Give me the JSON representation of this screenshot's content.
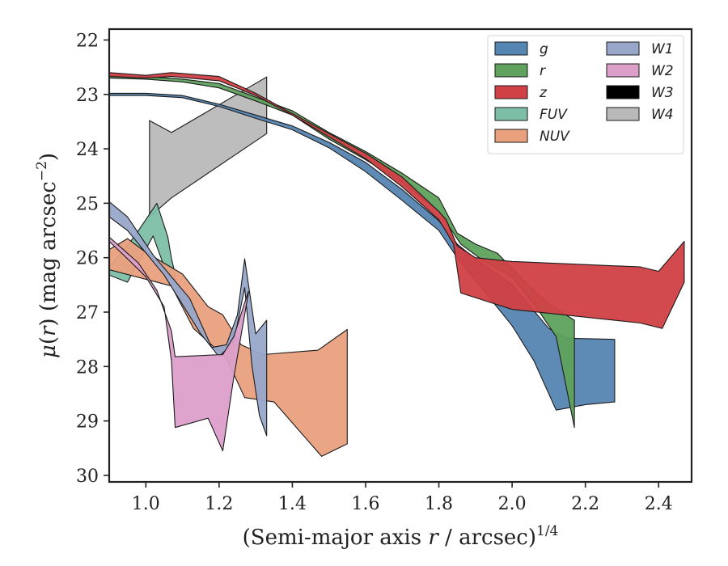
{
  "chart_data": {
    "type": "area",
    "xlabel": "(Semi-major axis r / arcsec)^{1/4}",
    "xlabel_parts": {
      "prefix": "(Semi-major axis ",
      "var": "r",
      "suffix": " / arcsec)",
      "exponent": "1/4"
    },
    "ylabel": "μ(r) (mag arcsec^{-2})",
    "ylabel_parts": {
      "mu": "μ",
      "open": "(",
      "var": "r",
      "close": ")",
      "rest": " (mag arcsec",
      "exponent": "−2",
      "end": ")"
    },
    "xlim": [
      0.9,
      2.49
    ],
    "ylim": [
      30.12,
      21.8
    ],
    "y_inverted": true,
    "x_ticks": [
      "1.0",
      "1.2",
      "1.4",
      "1.6",
      "1.8",
      "2.0",
      "2.2",
      "2.4"
    ],
    "x_tick_values": [
      1.0,
      1.2,
      1.4,
      1.6,
      1.8,
      2.0,
      2.2,
      2.4
    ],
    "y_ticks": [
      "22",
      "23",
      "24",
      "25",
      "26",
      "27",
      "28",
      "29",
      "30"
    ],
    "y_tick_values": [
      22,
      23,
      24,
      25,
      26,
      27,
      28,
      29,
      30
    ],
    "legend": {
      "location": "top-right",
      "columns": 2,
      "entries": [
        "g",
        "r",
        "z",
        "FUV",
        "NUV",
        "W1",
        "W2",
        "W3",
        "W4"
      ]
    },
    "series": [
      {
        "name": "W4",
        "color": "#b9b9b9",
        "upper": [
          [
            1.01,
            23.48
          ],
          [
            1.07,
            23.7
          ],
          [
            1.33,
            22.68
          ]
        ],
        "lower": [
          [
            1.01,
            25.25
          ],
          [
            1.07,
            24.9
          ],
          [
            1.33,
            23.72
          ]
        ]
      },
      {
        "name": "g",
        "color": "#5585b1",
        "upper": [
          [
            0.9,
            22.98
          ],
          [
            1.0,
            22.98
          ],
          [
            1.1,
            23.02
          ],
          [
            1.2,
            23.18
          ],
          [
            1.3,
            23.38
          ],
          [
            1.4,
            23.58
          ],
          [
            1.5,
            23.88
          ],
          [
            1.6,
            24.25
          ],
          [
            1.7,
            24.75
          ],
          [
            1.8,
            25.32
          ],
          [
            1.85,
            25.75
          ],
          [
            1.9,
            26.02
          ],
          [
            2.0,
            26.5
          ],
          [
            2.1,
            27.3
          ],
          [
            2.15,
            27.48
          ],
          [
            2.28,
            27.5
          ]
        ],
        "lower": [
          [
            0.9,
            23.02
          ],
          [
            1.0,
            23.02
          ],
          [
            1.1,
            23.06
          ],
          [
            1.2,
            23.22
          ],
          [
            1.3,
            23.44
          ],
          [
            1.4,
            23.65
          ],
          [
            1.5,
            23.98
          ],
          [
            1.6,
            24.42
          ],
          [
            1.7,
            24.95
          ],
          [
            1.8,
            25.5
          ],
          [
            1.85,
            26.0
          ],
          [
            2.0,
            27.25
          ],
          [
            2.06,
            27.9
          ],
          [
            2.12,
            28.8
          ],
          [
            2.2,
            28.7
          ],
          [
            2.28,
            28.65
          ]
        ]
      },
      {
        "name": "r",
        "color": "#5fa25d",
        "upper": [
          [
            0.9,
            22.65
          ],
          [
            1.0,
            22.67
          ],
          [
            1.1,
            22.72
          ],
          [
            1.2,
            22.8
          ],
          [
            1.3,
            23.05
          ],
          [
            1.4,
            23.3
          ],
          [
            1.5,
            23.7
          ],
          [
            1.6,
            24.05
          ],
          [
            1.7,
            24.45
          ],
          [
            1.8,
            24.9
          ],
          [
            1.85,
            25.55
          ],
          [
            1.9,
            25.75
          ],
          [
            1.96,
            25.92
          ],
          [
            2.05,
            26.55
          ],
          [
            2.1,
            26.85
          ],
          [
            2.17,
            27.15
          ]
        ],
        "lower": [
          [
            0.9,
            22.7
          ],
          [
            1.0,
            22.72
          ],
          [
            1.1,
            22.77
          ],
          [
            1.2,
            22.88
          ],
          [
            1.3,
            23.12
          ],
          [
            1.4,
            23.38
          ],
          [
            1.5,
            23.82
          ],
          [
            1.6,
            24.2
          ],
          [
            1.7,
            24.62
          ],
          [
            1.8,
            25.15
          ],
          [
            1.86,
            25.75
          ],
          [
            1.92,
            26.05
          ],
          [
            2.0,
            26.35
          ],
          [
            2.06,
            26.85
          ],
          [
            2.12,
            27.45
          ],
          [
            2.17,
            29.12
          ]
        ]
      },
      {
        "name": "z",
        "color": "#d14045",
        "upper": [
          [
            0.9,
            22.6
          ],
          [
            1.0,
            22.65
          ],
          [
            1.07,
            22.6
          ],
          [
            1.2,
            22.67
          ],
          [
            1.3,
            22.98
          ],
          [
            1.4,
            23.35
          ],
          [
            1.5,
            23.72
          ],
          [
            1.6,
            24.08
          ],
          [
            1.7,
            24.52
          ],
          [
            1.8,
            25.15
          ],
          [
            1.82,
            25.3
          ],
          [
            1.85,
            25.78
          ],
          [
            1.9,
            26.0
          ],
          [
            2.0,
            26.07
          ],
          [
            2.35,
            26.17
          ],
          [
            2.4,
            26.25
          ],
          [
            2.47,
            25.7
          ]
        ],
        "lower": [
          [
            0.9,
            22.67
          ],
          [
            1.0,
            22.7
          ],
          [
            1.07,
            22.67
          ],
          [
            1.2,
            22.75
          ],
          [
            1.3,
            23.02
          ],
          [
            1.4,
            23.38
          ],
          [
            1.5,
            23.78
          ],
          [
            1.6,
            24.18
          ],
          [
            1.7,
            24.7
          ],
          [
            1.8,
            25.3
          ],
          [
            1.84,
            25.75
          ],
          [
            1.86,
            26.65
          ],
          [
            2.0,
            26.95
          ],
          [
            2.35,
            27.2
          ],
          [
            2.41,
            27.3
          ],
          [
            2.47,
            26.45
          ]
        ]
      },
      {
        "name": "FUV",
        "color": "#7dbfa6",
        "upper": [
          [
            0.9,
            26.18
          ],
          [
            0.97,
            25.6
          ],
          [
            1.03,
            25.0
          ],
          [
            1.06,
            25.62
          ],
          [
            1.07,
            26.02
          ],
          [
            1.08,
            26.3
          ]
        ],
        "lower": [
          [
            0.9,
            26.32
          ],
          [
            0.95,
            26.45
          ],
          [
            1.02,
            25.6
          ],
          [
            1.06,
            26.35
          ],
          [
            1.08,
            26.62
          ]
        ]
      },
      {
        "name": "NUV",
        "color": "#e9a07d",
        "upper": [
          [
            0.9,
            25.85
          ],
          [
            0.95,
            25.65
          ],
          [
            1.0,
            25.9
          ],
          [
            1.1,
            26.3
          ],
          [
            1.17,
            26.9
          ],
          [
            1.21,
            27.05
          ],
          [
            1.26,
            27.6
          ],
          [
            1.32,
            27.78
          ],
          [
            1.47,
            27.7
          ],
          [
            1.55,
            27.32
          ]
        ],
        "lower": [
          [
            0.9,
            26.22
          ],
          [
            1.07,
            26.52
          ],
          [
            1.13,
            27.3
          ],
          [
            1.22,
            27.85
          ],
          [
            1.27,
            28.57
          ],
          [
            1.35,
            28.65
          ],
          [
            1.48,
            29.65
          ],
          [
            1.55,
            29.42
          ]
        ]
      },
      {
        "name": "W1",
        "color": "#98a6ca",
        "upper": [
          [
            0.9,
            24.97
          ],
          [
            0.95,
            25.25
          ],
          [
            1.02,
            25.95
          ],
          [
            1.12,
            26.75
          ],
          [
            1.18,
            27.65
          ],
          [
            1.22,
            27.6
          ],
          [
            1.25,
            27.05
          ],
          [
            1.27,
            26.02
          ],
          [
            1.3,
            27.4
          ],
          [
            1.33,
            27.15
          ]
        ],
        "lower": [
          [
            0.9,
            25.25
          ],
          [
            0.95,
            25.5
          ],
          [
            1.05,
            26.32
          ],
          [
            1.15,
            27.4
          ],
          [
            1.2,
            27.82
          ],
          [
            1.24,
            27.55
          ],
          [
            1.27,
            26.55
          ],
          [
            1.29,
            28.0
          ],
          [
            1.31,
            28.9
          ],
          [
            1.33,
            29.27
          ]
        ]
      },
      {
        "name": "W2",
        "color": "#dc9fca",
        "upper": [
          [
            0.9,
            25.62
          ],
          [
            0.93,
            25.8
          ],
          [
            0.98,
            26.1
          ],
          [
            1.03,
            26.6
          ],
          [
            1.07,
            27.35
          ],
          [
            1.08,
            27.82
          ],
          [
            1.21,
            27.78
          ],
          [
            1.24,
            27.45
          ],
          [
            1.28,
            26.62
          ]
        ],
        "lower": [
          [
            0.9,
            25.7
          ],
          [
            0.95,
            26.02
          ],
          [
            1.0,
            26.35
          ],
          [
            1.05,
            26.9
          ],
          [
            1.07,
            27.9
          ],
          [
            1.08,
            29.12
          ],
          [
            1.17,
            28.95
          ],
          [
            1.21,
            29.55
          ],
          [
            1.24,
            28.2
          ],
          [
            1.28,
            26.65
          ]
        ]
      }
    ]
  }
}
